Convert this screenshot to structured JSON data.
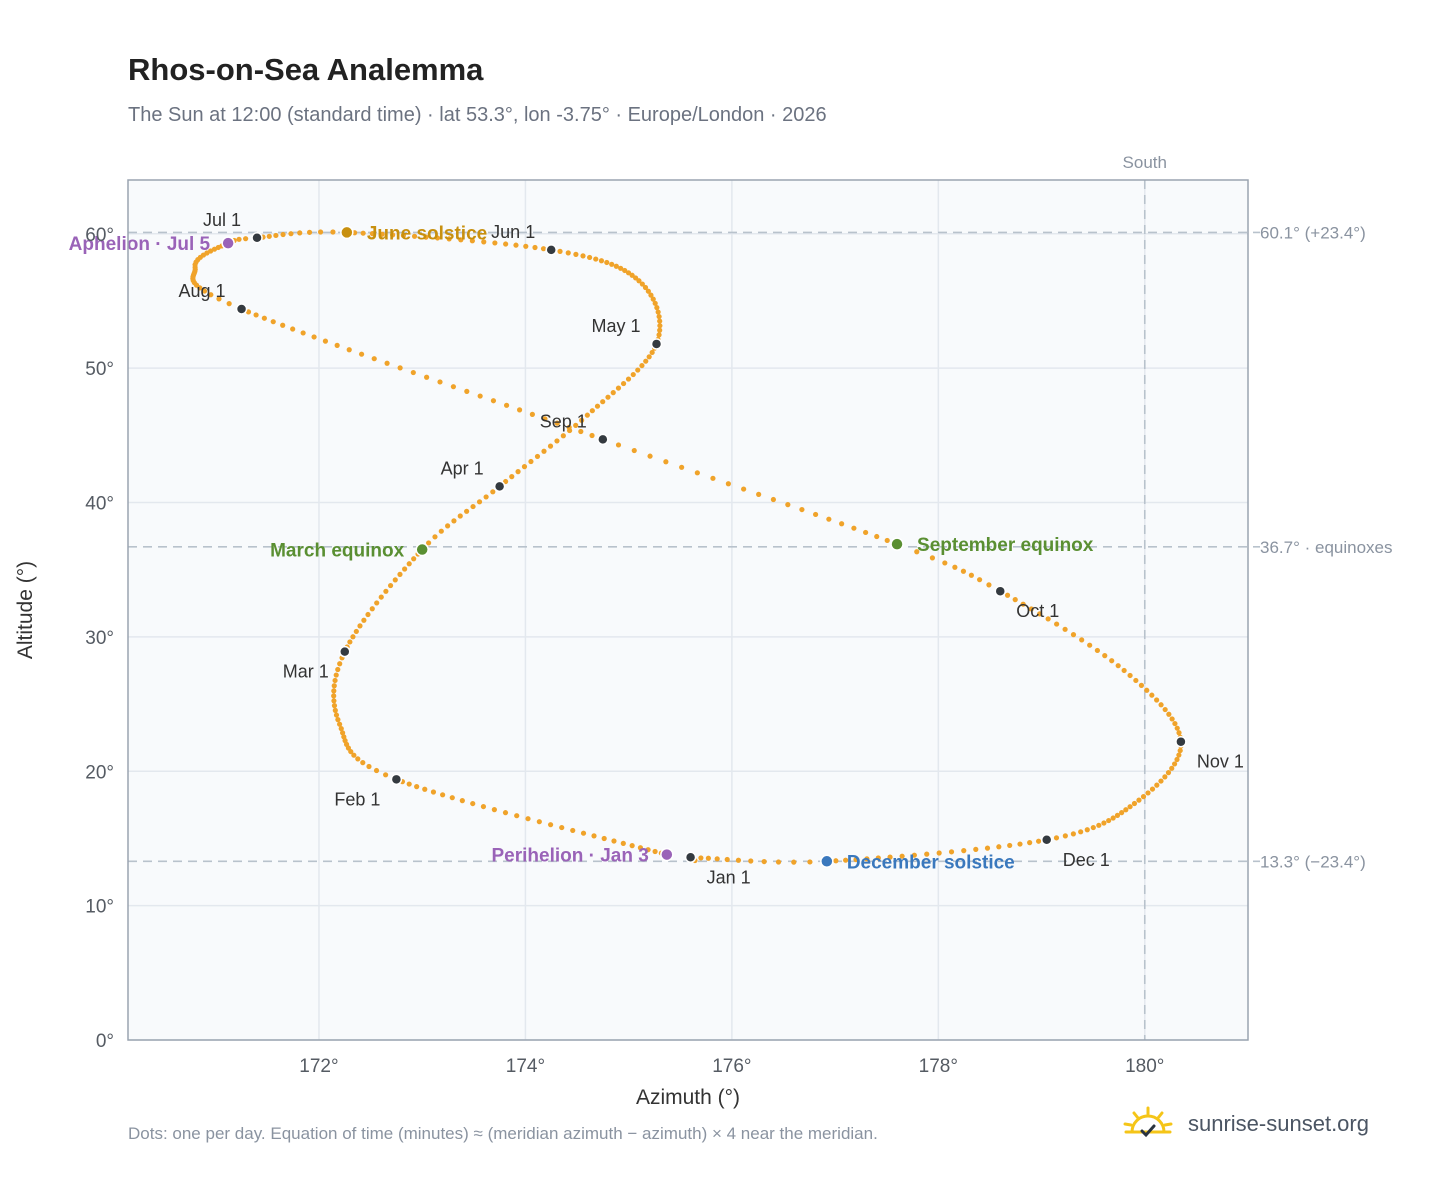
{
  "title": "Rhos-on-Sea Analemma",
  "subtitle": "The Sun at 12:00 (standard time) · lat 53.3°, lon -3.75° · Europe/London · 2026",
  "footnote": "Dots: one per day. Equation of time (minutes) ≈ (meridian azimuth − azimuth) × 4 near the meridian.",
  "brand": {
    "text": "sunrise-sunset.org",
    "icon": "sun-logo-icon"
  },
  "colors": {
    "path": "#f0a32a",
    "month": "#343a40",
    "june_solstice": "#c8900f",
    "december_solstice": "#3a78bd",
    "equinox": "#5a8f32",
    "apsis": "#9a63b8",
    "reference_line": "#b8c2cc",
    "plot_background": "#f8fafc",
    "frame": "#9aa4b0"
  },
  "chart_data": {
    "type": "scatter",
    "title": "Rhos-on-Sea Analemma",
    "xlabel": "Azimuth (°)",
    "ylabel": "Altitude (°)",
    "xlim": [
      170.15,
      181.0
    ],
    "ylim": [
      0,
      64
    ],
    "xticks": [
      172,
      174,
      176,
      178,
      180
    ],
    "yticks": [
      0,
      10,
      20,
      30,
      40,
      50,
      60
    ],
    "xtick_labels": [
      "172°",
      "174°",
      "176°",
      "178°",
      "180°"
    ],
    "ytick_labels": [
      "0°",
      "10°",
      "20°",
      "30°",
      "40°",
      "50°",
      "60°"
    ],
    "grid": true,
    "meridian": {
      "azimuth": 180,
      "label": "South"
    },
    "reference_lines": [
      {
        "altitude": 60.1,
        "label": "60.1° (+23.4°)"
      },
      {
        "altitude": 36.7,
        "label": "36.7° · equinoxes"
      },
      {
        "altitude": 13.3,
        "label": "13.3° (−23.4°)"
      }
    ],
    "daily_path_knots": [
      {
        "day": 1,
        "azimuth": 175.6,
        "altitude": 13.6
      },
      {
        "day": 3,
        "azimuth": 175.37,
        "altitude": 13.8
      },
      {
        "day": 32,
        "azimuth": 172.75,
        "altitude": 19.4
      },
      {
        "day": 46,
        "azimuth": 172.2,
        "altitude": 23.5
      },
      {
        "day": 60,
        "azimuth": 172.25,
        "altitude": 28.9
      },
      {
        "day": 79,
        "azimuth": 173.0,
        "altitude": 36.5
      },
      {
        "day": 91,
        "azimuth": 173.75,
        "altitude": 41.2
      },
      {
        "day": 105,
        "azimuth": 174.6,
        "altitude": 46.5
      },
      {
        "day": 121,
        "azimuth": 175.27,
        "altitude": 51.8
      },
      {
        "day": 136,
        "azimuth": 175.1,
        "altitude": 56.5
      },
      {
        "day": 152,
        "azimuth": 174.25,
        "altitude": 58.8
      },
      {
        "day": 172,
        "azimuth": 172.27,
        "altitude": 60.1
      },
      {
        "day": 182,
        "azimuth": 171.4,
        "altitude": 59.7
      },
      {
        "day": 186,
        "azimuth": 171.12,
        "altitude": 59.3
      },
      {
        "day": 198,
        "azimuth": 170.8,
        "altitude": 57.5
      },
      {
        "day": 213,
        "azimuth": 171.25,
        "altitude": 54.4
      },
      {
        "day": 244,
        "azimuth": 174.75,
        "altitude": 44.7
      },
      {
        "day": 265,
        "azimuth": 177.6,
        "altitude": 36.9
      },
      {
        "day": 274,
        "azimuth": 178.6,
        "altitude": 33.4
      },
      {
        "day": 290,
        "azimuth": 179.8,
        "altitude": 27.5
      },
      {
        "day": 305,
        "azimuth": 180.35,
        "altitude": 22.2
      },
      {
        "day": 320,
        "azimuth": 179.9,
        "altitude": 17.6
      },
      {
        "day": 335,
        "azimuth": 179.05,
        "altitude": 14.9
      },
      {
        "day": 355,
        "azimuth": 176.92,
        "altitude": 13.3
      },
      {
        "day": 365,
        "azimuth": 175.7,
        "altitude": 13.55
      }
    ],
    "month_markers": [
      {
        "label": "Jan 1",
        "azimuth": 175.6,
        "altitude": 13.6,
        "label_pos": "below-right"
      },
      {
        "label": "Feb 1",
        "azimuth": 172.75,
        "altitude": 19.4,
        "label_pos": "below-left"
      },
      {
        "label": "Mar 1",
        "azimuth": 172.25,
        "altitude": 28.9,
        "label_pos": "below-left"
      },
      {
        "label": "Apr 1",
        "azimuth": 173.75,
        "altitude": 41.2,
        "label_pos": "above-left"
      },
      {
        "label": "May 1",
        "azimuth": 175.27,
        "altitude": 51.8,
        "label_pos": "above-left"
      },
      {
        "label": "Jun 1",
        "azimuth": 174.25,
        "altitude": 58.8,
        "label_pos": "above-left"
      },
      {
        "label": "Jul 1",
        "azimuth": 171.4,
        "altitude": 59.7,
        "label_pos": "above-left"
      },
      {
        "label": "Aug 1",
        "azimuth": 171.25,
        "altitude": 54.4,
        "label_pos": "above-left"
      },
      {
        "label": "Sep 1",
        "azimuth": 174.75,
        "altitude": 44.7,
        "label_pos": "above-left"
      },
      {
        "label": "Oct 1",
        "azimuth": 178.6,
        "altitude": 33.4,
        "label_pos": "below-right"
      },
      {
        "label": "Nov 1",
        "azimuth": 180.35,
        "altitude": 22.2,
        "label_pos": "below-right"
      },
      {
        "label": "Dec 1",
        "azimuth": 179.05,
        "altitude": 14.9,
        "label_pos": "below-right"
      }
    ],
    "events": [
      {
        "label": "June solstice",
        "azimuth": 172.27,
        "altitude": 60.1,
        "color_key": "june_solstice",
        "label_pos": "right"
      },
      {
        "label": "March equinox",
        "azimuth": 173.0,
        "altitude": 36.5,
        "color_key": "equinox",
        "label_pos": "left"
      },
      {
        "label": "September equinox",
        "azimuth": 177.6,
        "altitude": 36.9,
        "color_key": "equinox",
        "label_pos": "right"
      },
      {
        "label": "December solstice",
        "azimuth": 176.92,
        "altitude": 13.3,
        "color_key": "december_solstice",
        "label_pos": "right"
      },
      {
        "label": "Aphelion · Jul 5",
        "azimuth": 171.12,
        "altitude": 59.3,
        "color_key": "apsis",
        "label_pos": "left"
      },
      {
        "label": "Perihelion · Jan 3",
        "azimuth": 175.37,
        "altitude": 13.8,
        "color_key": "apsis",
        "label_pos": "left"
      }
    ]
  }
}
